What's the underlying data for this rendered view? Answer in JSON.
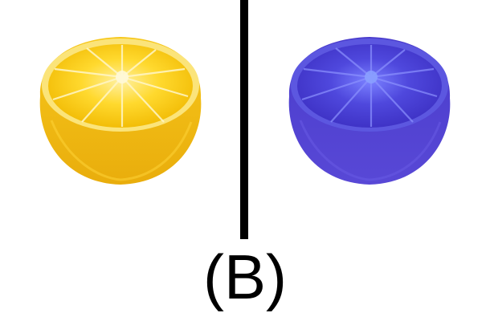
{
  "panel_label": "(B)",
  "images": {
    "left": {
      "subject": "lemon-half",
      "color": "#f5c518"
    },
    "right": {
      "subject": "lemon-half-color-inverted",
      "color": "#4b3bd0"
    }
  }
}
